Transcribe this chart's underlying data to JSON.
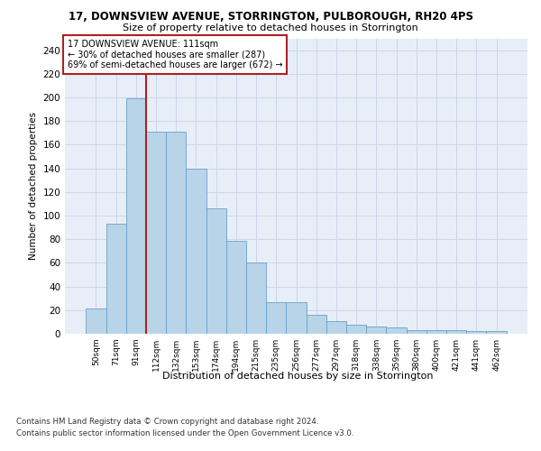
{
  "title": "17, DOWNSVIEW AVENUE, STORRINGTON, PULBOROUGH, RH20 4PS",
  "subtitle": "Size of property relative to detached houses in Storrington",
  "xlabel": "Distribution of detached houses by size in Storrington",
  "ylabel": "Number of detached properties",
  "categories": [
    "50sqm",
    "71sqm",
    "91sqm",
    "112sqm",
    "132sqm",
    "153sqm",
    "174sqm",
    "194sqm",
    "215sqm",
    "235sqm",
    "256sqm",
    "277sqm",
    "297sqm",
    "318sqm",
    "338sqm",
    "359sqm",
    "380sqm",
    "400sqm",
    "421sqm",
    "441sqm",
    "462sqm"
  ],
  "values": [
    21,
    93,
    199,
    171,
    171,
    140,
    106,
    79,
    60,
    27,
    27,
    16,
    11,
    8,
    6,
    5,
    3,
    3,
    3,
    2,
    2
  ],
  "bar_color": "#b8d4e8",
  "bar_edge_color": "#6aa0c8",
  "vline_color": "#aa2222",
  "vline_bar_index": 2,
  "annotation_title": "17 DOWNSVIEW AVENUE: 111sqm",
  "annotation_line1": "← 30% of detached houses are smaller (287)",
  "annotation_line2": "69% of semi-detached houses are larger (672) →",
  "annotation_box_color": "#ffffff",
  "annotation_box_edge": "#aa2222",
  "ylim": [
    0,
    250
  ],
  "yticks": [
    0,
    20,
    40,
    60,
    80,
    100,
    120,
    140,
    160,
    180,
    200,
    220,
    240
  ],
  "grid_color": "#ccd6e8",
  "bg_color": "#e8eef8",
  "footer1": "Contains HM Land Registry data © Crown copyright and database right 2024.",
  "footer2": "Contains public sector information licensed under the Open Government Licence v3.0."
}
